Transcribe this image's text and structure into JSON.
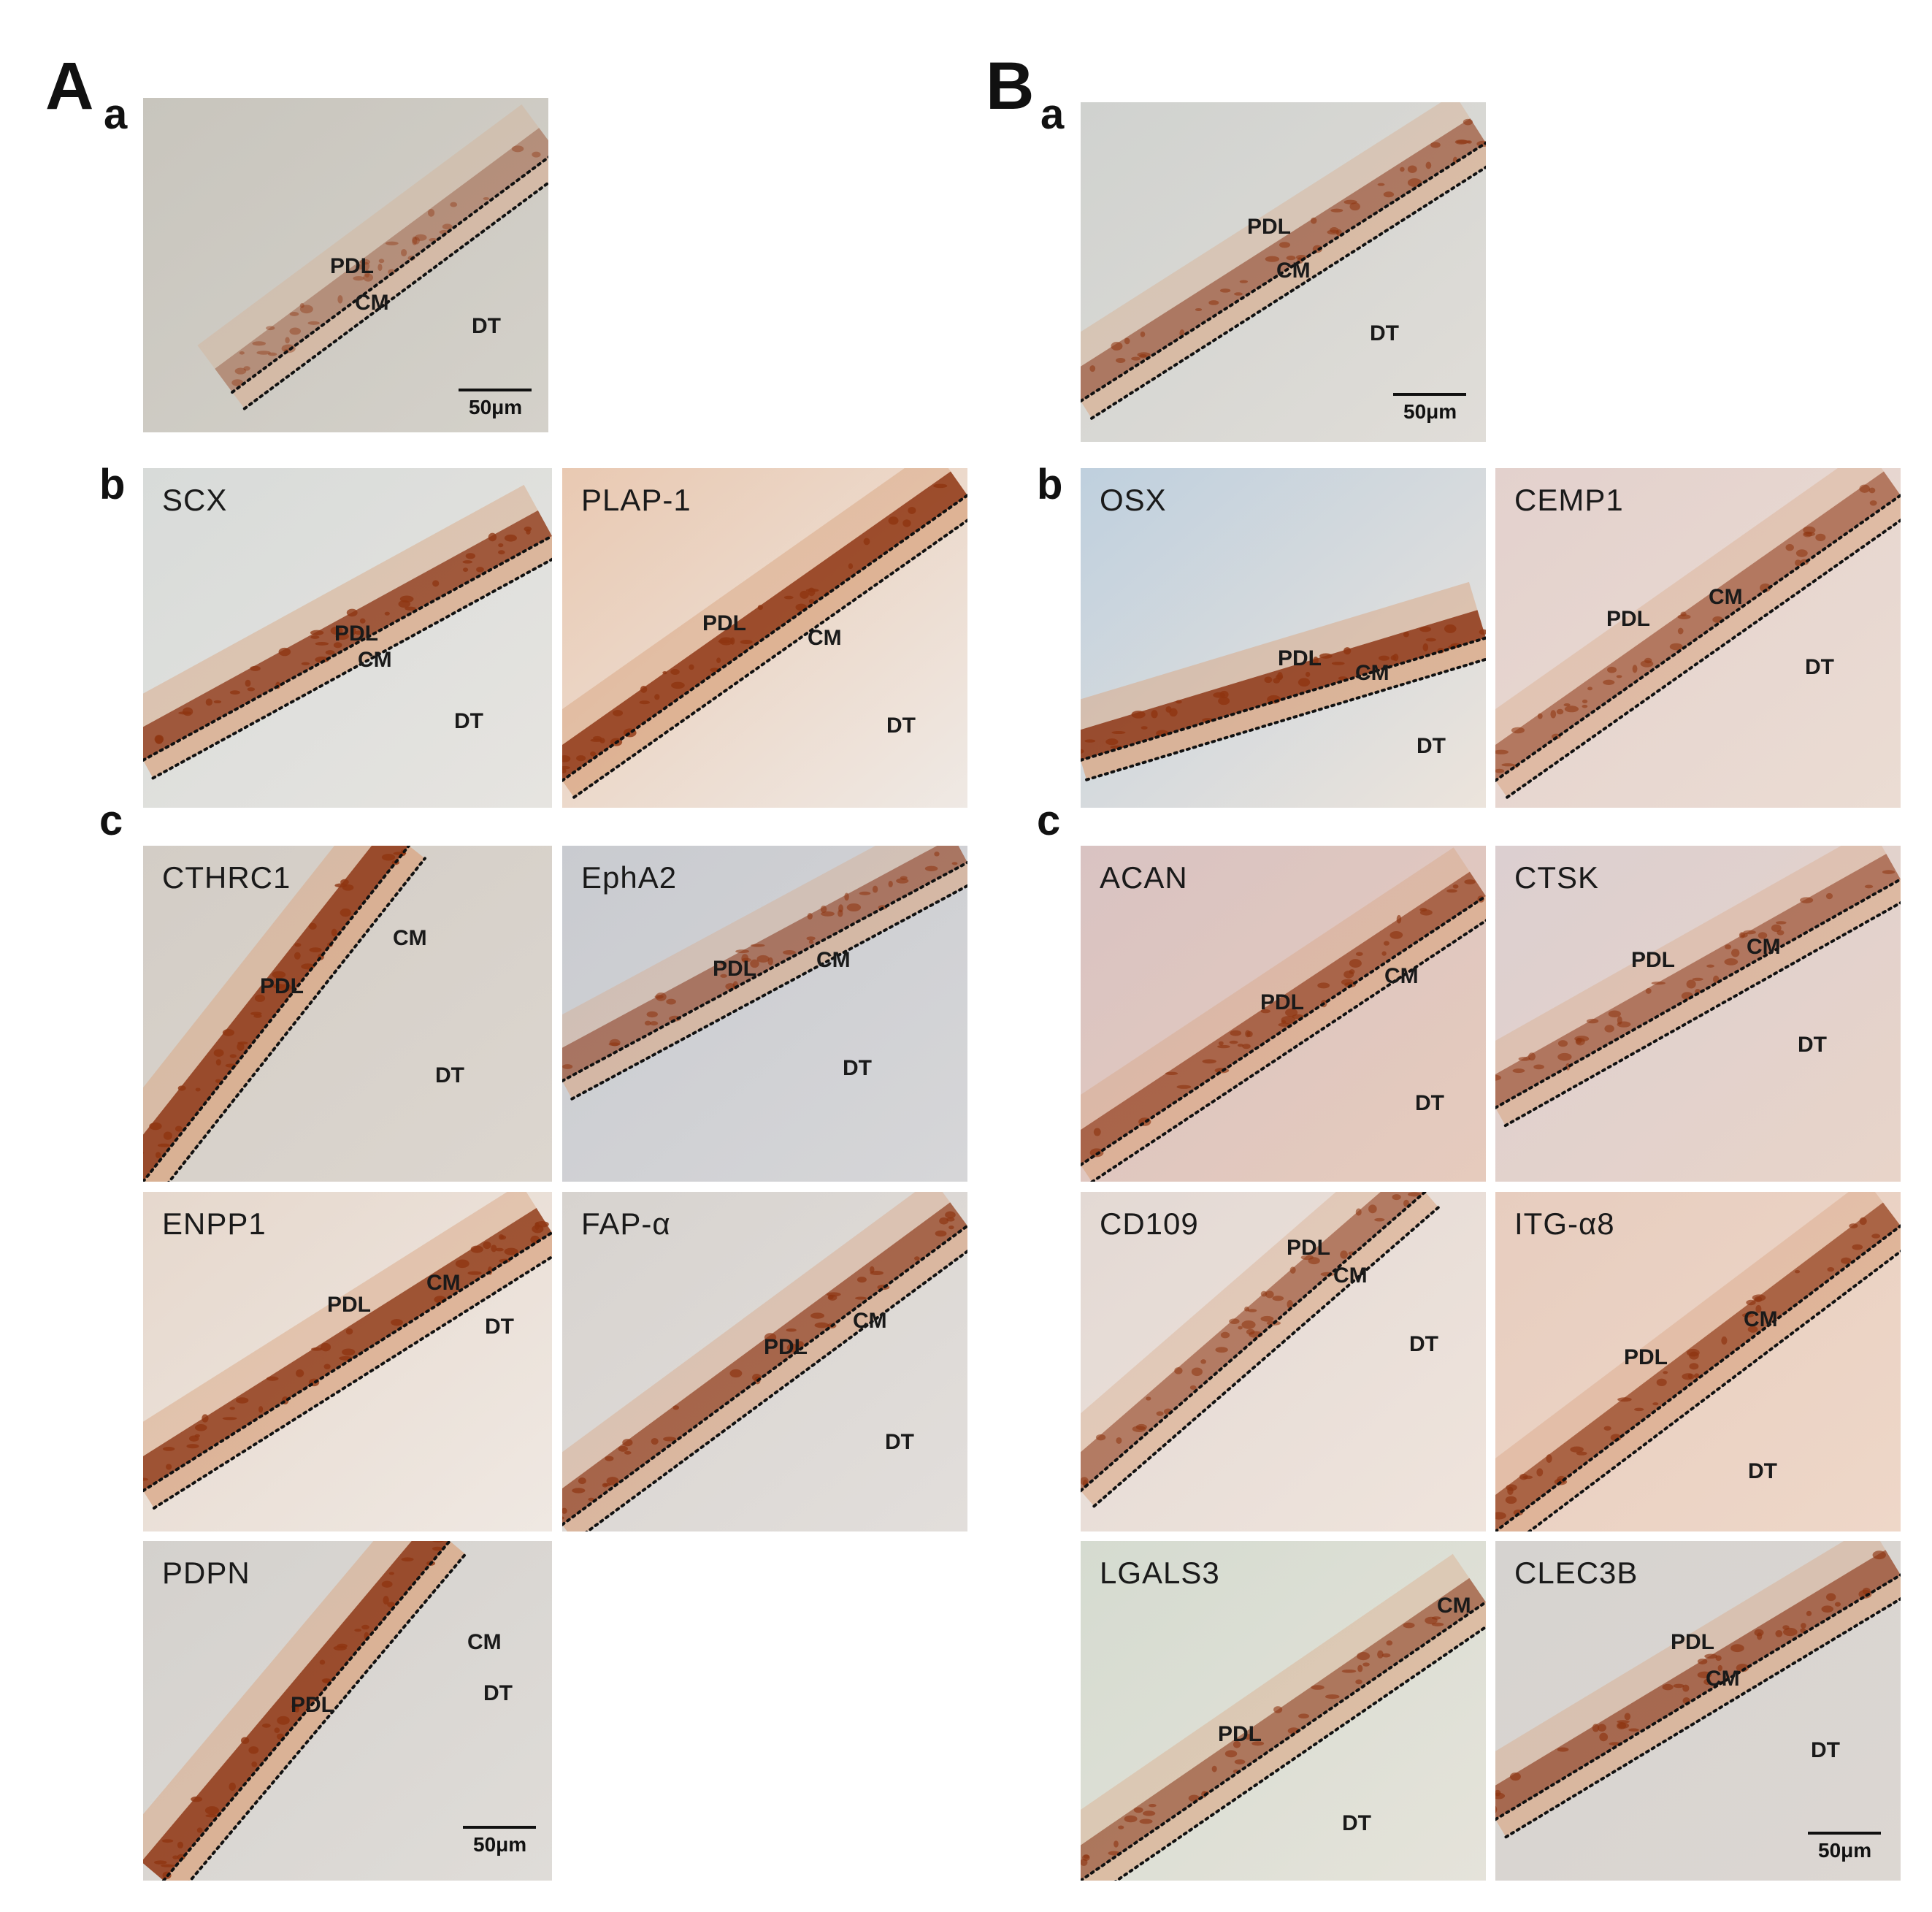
{
  "figure": {
    "sections": [
      {
        "letter": "A",
        "subpanels": [
          {
            "letter": "a",
            "panels": [
              {
                "marker": "",
                "labels": {
                  "pdl": "PDL",
                  "cm": "CM",
                  "dt": "DT"
                },
                "scale": "50μm"
              }
            ]
          },
          {
            "letter": "b",
            "panels": [
              {
                "marker": "SCX",
                "labels": {
                  "pdl": "PDL",
                  "cm": "CM",
                  "dt": "DT"
                }
              },
              {
                "marker": "PLAP-1",
                "labels": {
                  "pdl": "PDL",
                  "cm": "CM",
                  "dt": "DT"
                }
              }
            ]
          },
          {
            "letter": "c",
            "panels": [
              {
                "marker": "CTHRC1",
                "labels": {
                  "pdl": "PDL",
                  "cm": "CM",
                  "dt": "DT"
                }
              },
              {
                "marker": "EphA2",
                "labels": {
                  "pdl": "PDL",
                  "cm": "CM",
                  "dt": "DT"
                }
              },
              {
                "marker": "ENPP1",
                "labels": {
                  "pdl": "PDL",
                  "cm": "CM",
                  "dt": "DT"
                }
              },
              {
                "marker": "FAP-α",
                "labels": {
                  "pdl": "PDL",
                  "cm": "CM",
                  "dt": "DT"
                }
              },
              {
                "marker": "PDPN",
                "labels": {
                  "pdl": "PDL",
                  "cm": "CM",
                  "dt": "DT"
                },
                "scale": "50μm"
              }
            ]
          }
        ]
      },
      {
        "letter": "B",
        "subpanels": [
          {
            "letter": "a",
            "panels": [
              {
                "marker": "",
                "labels": {
                  "pdl": "PDL",
                  "cm": "CM",
                  "dt": "DT"
                },
                "scale": "50μm"
              }
            ]
          },
          {
            "letter": "b",
            "panels": [
              {
                "marker": "OSX",
                "labels": {
                  "pdl": "PDL",
                  "cm": "CM",
                  "dt": "DT"
                }
              },
              {
                "marker": "CEMP1",
                "labels": {
                  "pdl": "PDL",
                  "cm": "CM",
                  "dt": "DT"
                }
              }
            ]
          },
          {
            "letter": "c",
            "panels": [
              {
                "marker": "ACAN",
                "labels": {
                  "pdl": "PDL",
                  "cm": "CM",
                  "dt": "DT"
                }
              },
              {
                "marker": "CTSK",
                "labels": {
                  "pdl": "PDL",
                  "cm": "CM",
                  "dt": "DT"
                }
              },
              {
                "marker": "CD109",
                "labels": {
                  "pdl": "PDL",
                  "cm": "CM",
                  "dt": "DT"
                }
              },
              {
                "marker": "ITG-α8",
                "labels": {
                  "pdl": "PDL",
                  "cm": "CM",
                  "dt": "DT"
                }
              },
              {
                "marker": "LGALS3",
                "labels": {
                  "pdl": "PDL",
                  "cm": "CM",
                  "dt": "DT"
                }
              },
              {
                "marker": "CLEC3B",
                "labels": {
                  "pdl": "PDL",
                  "cm": "CM",
                  "dt": "DT"
                },
                "scale": "50μm"
              }
            ]
          }
        ]
      }
    ]
  },
  "colors": {
    "stain_dark": "#8e3410",
    "stain_light": "#d9a582",
    "background": "#ffffff",
    "text": "#111111"
  }
}
